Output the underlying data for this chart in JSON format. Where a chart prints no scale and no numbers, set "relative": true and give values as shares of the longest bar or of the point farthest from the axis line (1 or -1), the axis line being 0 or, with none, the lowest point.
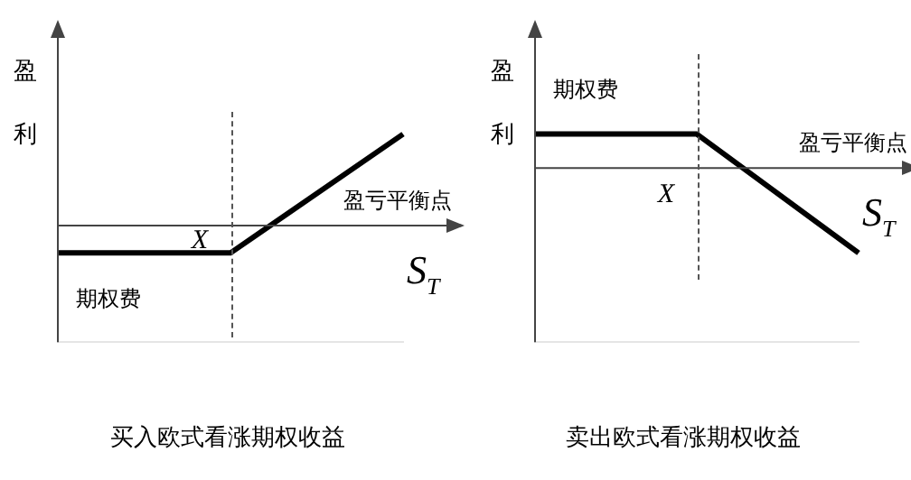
{
  "chart_data": [
    {
      "type": "line",
      "title": "买入欧式看涨期权收益",
      "xlabel": "S$_{T}$",
      "ylabel": "盈利",
      "relative": true,
      "categories": [
        null,
        null,
        null
      ],
      "series": [
        {
          "color": "#000000",
          "values": [
            -0.3,
            -0.3,
            1
          ]
        }
      ],
      "annotations": [
        "X",
        "期权费",
        "盈亏平衡点"
      ],
      "legend": false,
      "marker": "none",
      "line_style": "solid"
    },
    {
      "type": "line",
      "title": "卖出欧式看涨期权收益",
      "xlabel": "S$_{T}$",
      "ylabel": "盈利",
      "relative": true,
      "categories": [
        null,
        null,
        null
      ],
      "series": [
        {
          "color": "#000000",
          "values": [
            0.4,
            0.4,
            -1
          ]
        }
      ],
      "annotations": [
        "X",
        "期权费",
        "盈亏平衡点"
      ],
      "legend": false,
      "marker": "none",
      "line_style": "solid"
    }
  ]
}
